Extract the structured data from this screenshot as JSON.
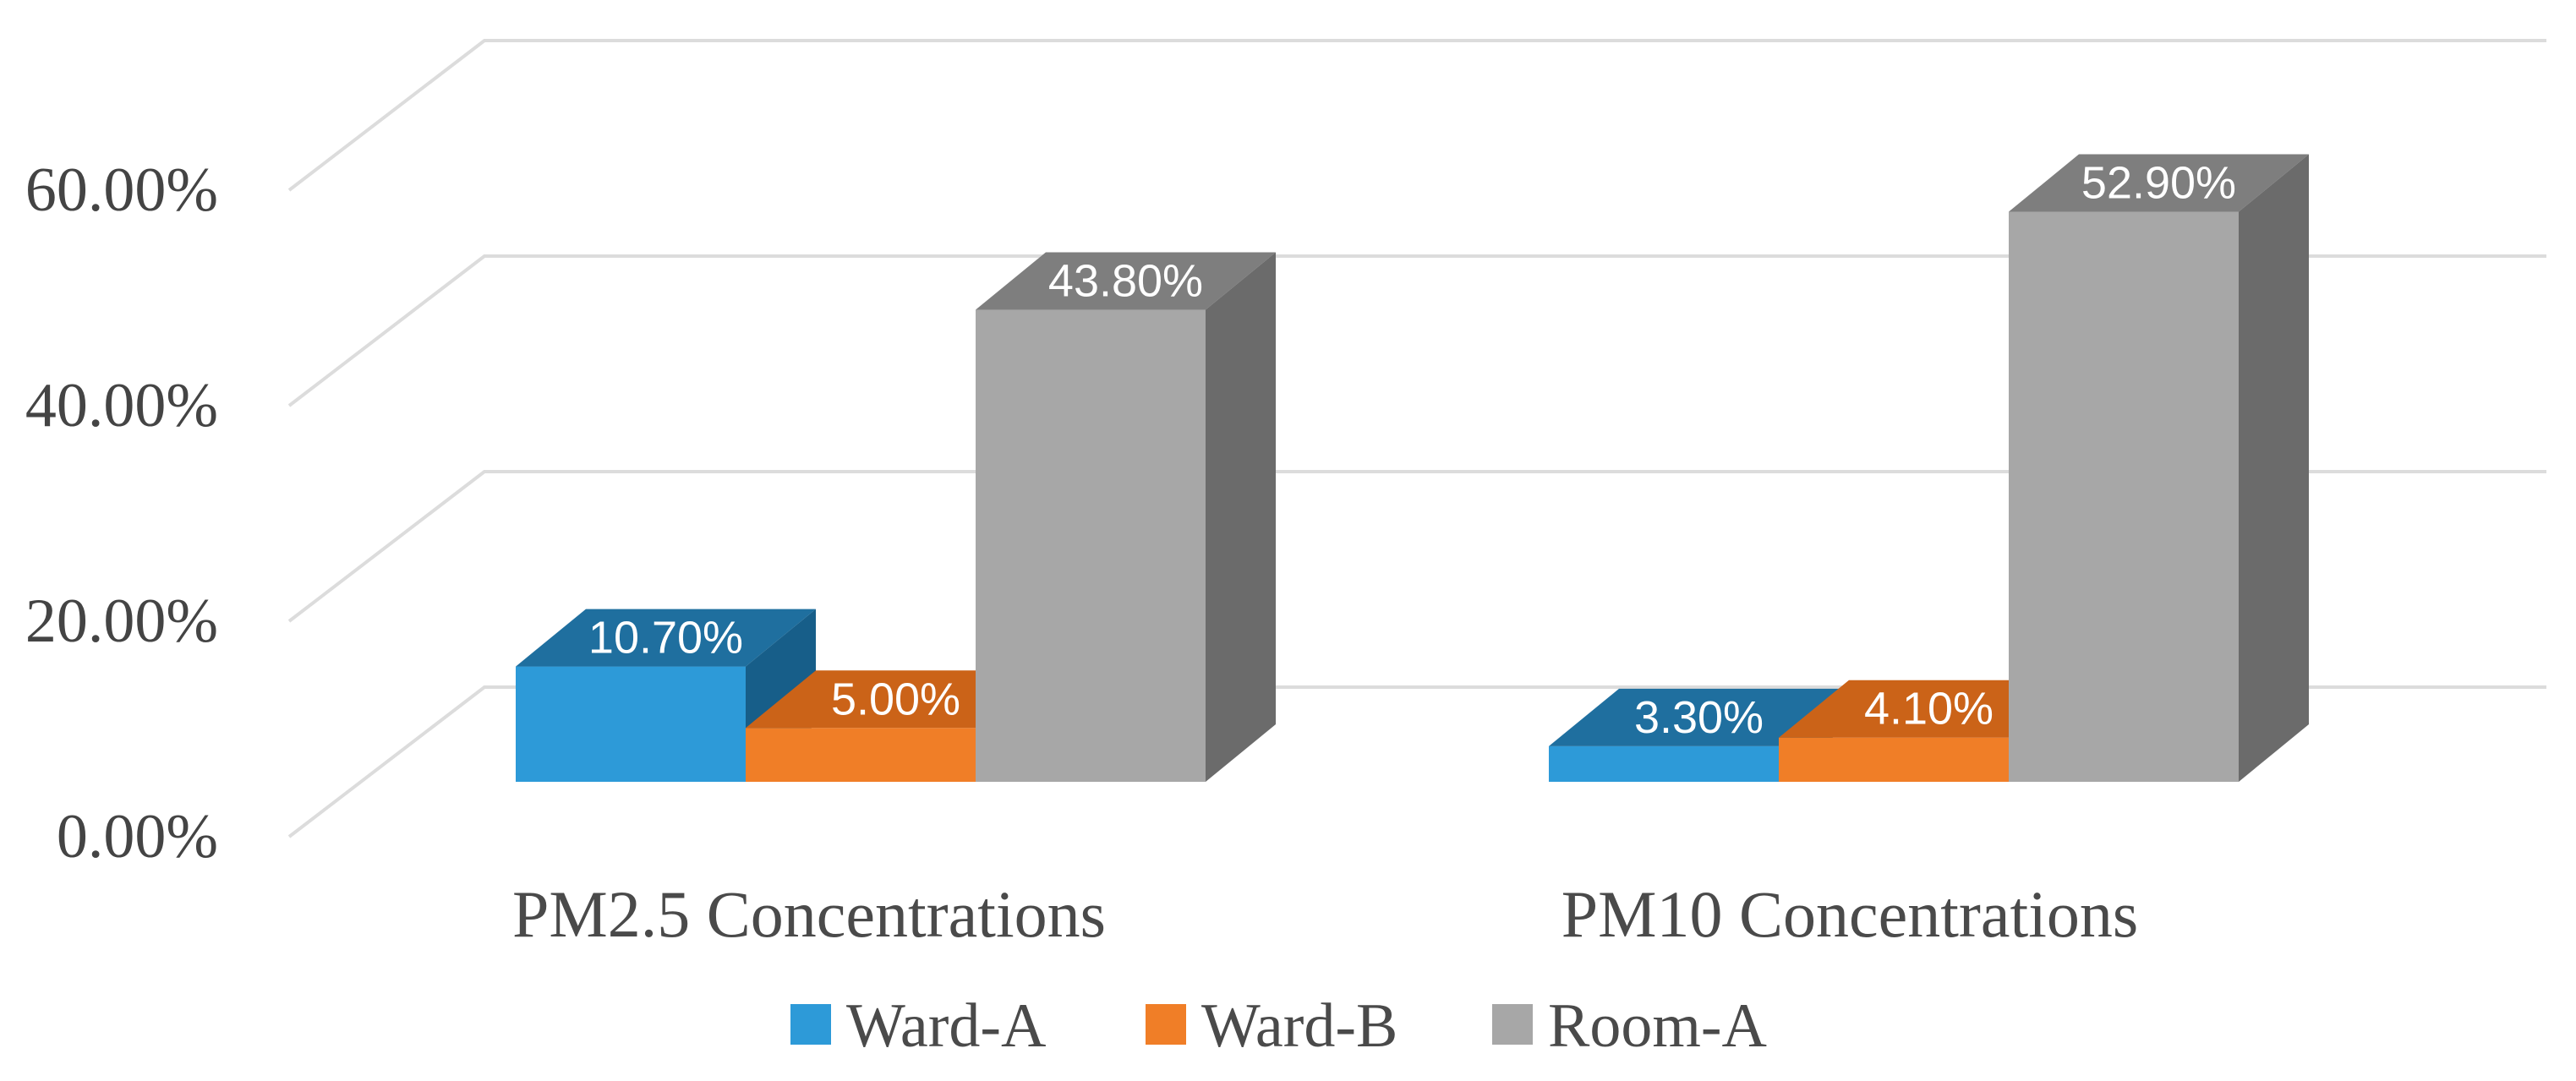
{
  "chart_data": {
    "type": "bar",
    "projection": "3d",
    "title": "",
    "categories": [
      "PM2.5 Concentrations",
      "PM10 Concentrations"
    ],
    "series": [
      {
        "name": "Ward-A",
        "values": [
          10.7,
          3.3
        ],
        "labels": [
          "10.70%",
          "3.30%"
        ],
        "color_front": "#2D9AD8",
        "color_top": "#1F6F9F",
        "color_side": "#175E89"
      },
      {
        "name": "Ward-B",
        "values": [
          5.0,
          4.1
        ],
        "labels": [
          "5.00%",
          "4.10%"
        ],
        "color_front": "#F07E27",
        "color_top": "#CB6318",
        "color_side": "#A85212"
      },
      {
        "name": "Room-A",
        "values": [
          43.8,
          52.9
        ],
        "labels": [
          "43.80%",
          "52.90%"
        ],
        "color_front": "#A7A7A7",
        "color_top": "#7E7E7E",
        "color_side": "#6B6B6B"
      }
    ],
    "y_axis": {
      "ticks": [
        "0.00%",
        "20.00%",
        "40.00%",
        "60.00%"
      ],
      "tick_values": [
        0,
        20,
        40,
        60
      ],
      "min": 0,
      "max": 60,
      "grid": true,
      "grid_color": "#dcdcdc"
    },
    "legend": {
      "position": "bottom",
      "entries": [
        "Ward-A",
        "Ward-B",
        "Room-A"
      ]
    },
    "value_label_color": "#ffffff",
    "axis_text_color": "#444444"
  }
}
